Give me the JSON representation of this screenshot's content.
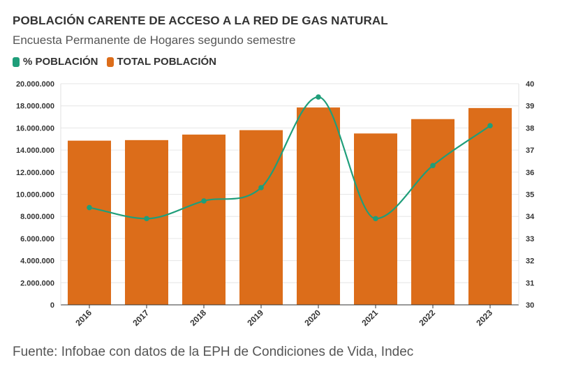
{
  "header": {
    "title": "POBLACIÓN CARENTE DE ACCESO A LA RED DE GAS NATURAL",
    "subtitle": "Encuesta Permanente de Hogares segundo semestre"
  },
  "legend": {
    "items": [
      {
        "label": "% POBLACIÓN",
        "color": "#1f9e7a"
      },
      {
        "label": "TOTAL POBLACIÓN",
        "color": "#dc6d1a"
      }
    ]
  },
  "footer": {
    "source": "Fuente: Infobae con datos de la EPH de Condiciones de Vida, Indec"
  },
  "chart_data": {
    "type": "bar",
    "title": "POBLACIÓN CARENTE DE ACCESO A LA RED DE GAS NATURAL",
    "subtitle": "Encuesta Permanente de Hogares segundo semestre",
    "categories": [
      "2016",
      "2017",
      "2018",
      "2019",
      "2020",
      "2021",
      "2022",
      "2023"
    ],
    "series": [
      {
        "name": "TOTAL POBLACIÓN",
        "type": "bar",
        "axis": "left",
        "color": "#dc6d1a",
        "values": [
          14850000,
          14900000,
          15400000,
          15800000,
          17850000,
          15500000,
          16800000,
          17800000
        ]
      },
      {
        "name": "% POBLACIÓN",
        "type": "line",
        "axis": "right",
        "color": "#1f9e7a",
        "values": [
          34.4,
          33.9,
          34.7,
          35.3,
          39.4,
          33.9,
          36.3,
          38.1
        ]
      }
    ],
    "y_left": {
      "min": 0,
      "max": 20000000,
      "ticks": [
        "0",
        "2.000.000",
        "4.000.000",
        "6.000.000",
        "8.000.000",
        "10.000.000",
        "12.000.000",
        "14.000.000",
        "16.000.000",
        "18.000.000",
        "20.000.000"
      ]
    },
    "y_right": {
      "min": 30,
      "max": 40,
      "ticks": [
        "30",
        "31",
        "32",
        "33",
        "34",
        "35",
        "36",
        "37",
        "38",
        "39",
        "40"
      ]
    },
    "legend_position": "top-left",
    "grid": true
  }
}
